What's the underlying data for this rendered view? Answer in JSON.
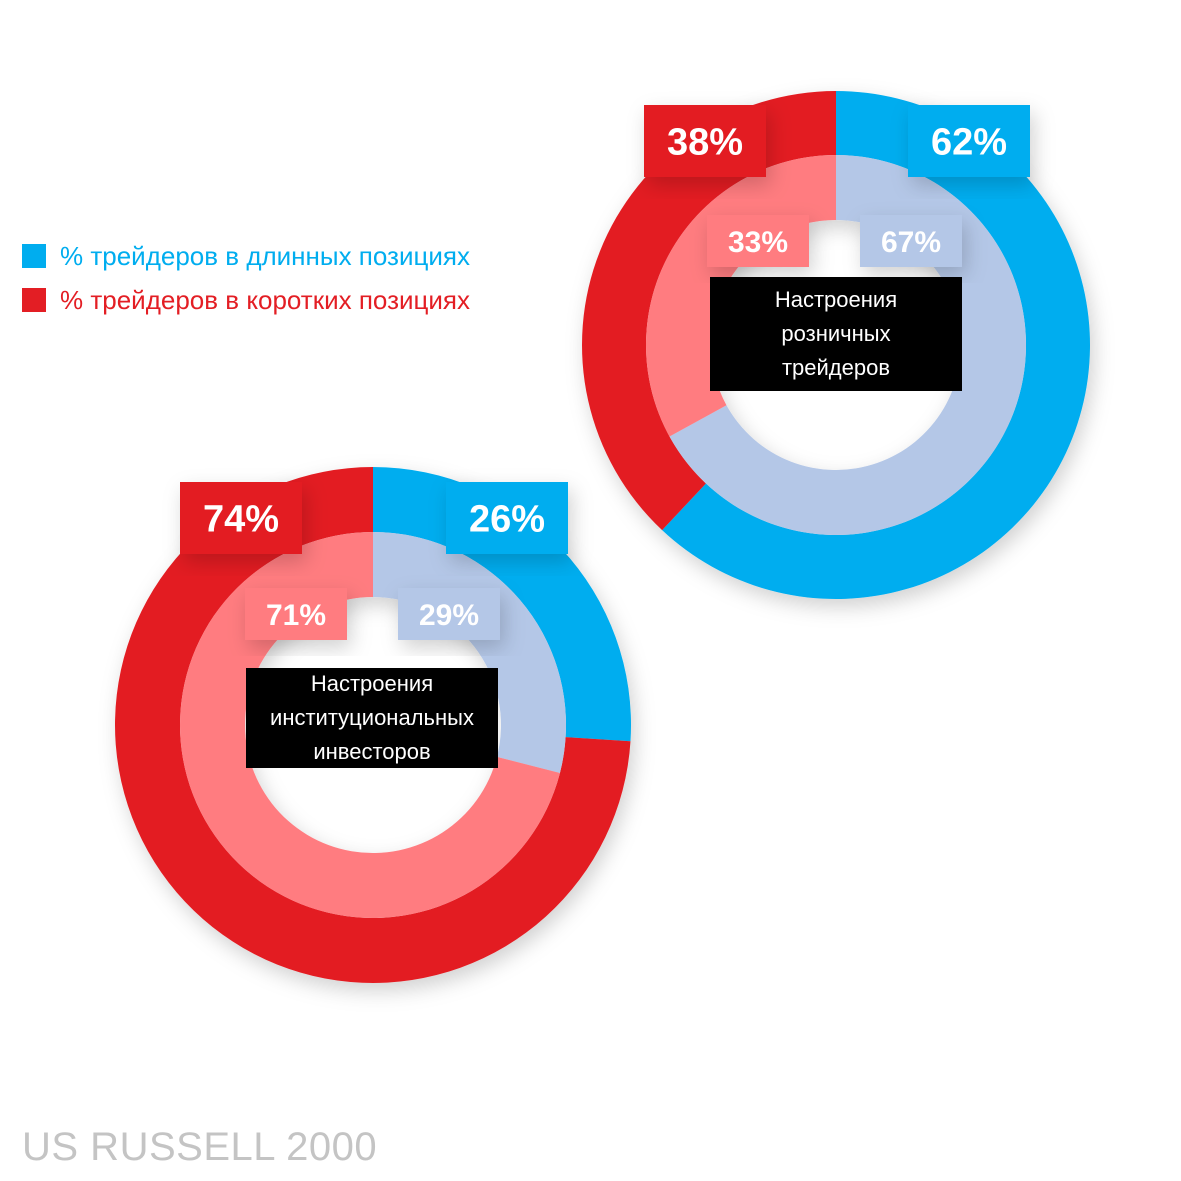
{
  "legend": {
    "long_label": "% трейдеров в длинных позициях",
    "short_label": "% трейдеров в коротких позициях",
    "long_color": "#00adef",
    "short_color": "#e31e24"
  },
  "colors": {
    "outer_long": "#00adef",
    "outer_short": "#e31e24",
    "inner_long": "#b4c7e7",
    "inner_short": "#ff7c80"
  },
  "footer": "US RUSSELL 2000",
  "chart_data": [
    {
      "type": "donut",
      "center_label": "Настроения\nрозничных\nтрейдеров",
      "outer": {
        "long": 62,
        "short": 38,
        "long_label": "62%",
        "short_label": "38%"
      },
      "inner": {
        "long": 67,
        "short": 33,
        "long_label": "67%",
        "short_label": "33%"
      }
    },
    {
      "type": "donut",
      "center_label": "Настроения\nинституциональных\nинвесторов",
      "outer": {
        "long": 26,
        "short": 74,
        "long_label": "26%",
        "short_label": "74%"
      },
      "inner": {
        "long": 29,
        "short": 71,
        "long_label": "29%",
        "short_label": "71%"
      }
    }
  ]
}
